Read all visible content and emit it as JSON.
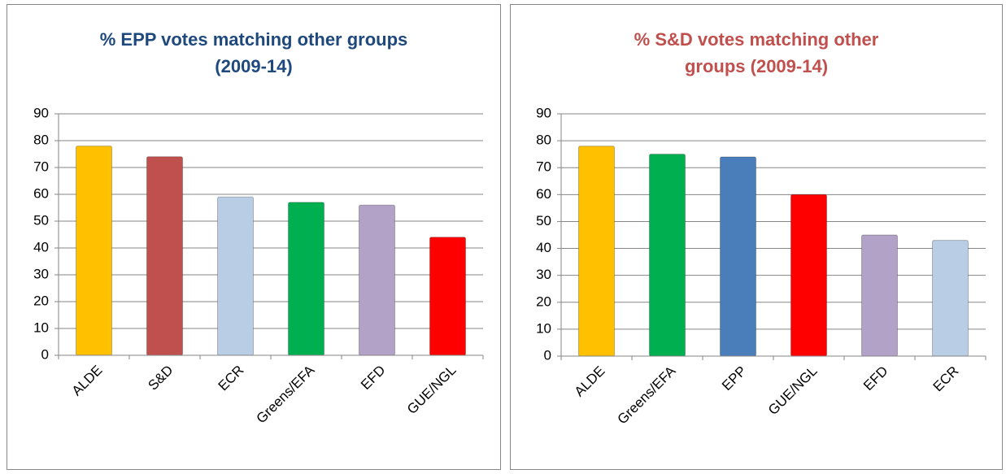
{
  "chart_data": [
    {
      "type": "bar",
      "title": [
        "% EPP votes matching other groups",
        "(2009-14)"
      ],
      "title_color": "#1f497d",
      "categories": [
        "ALDE",
        "S&D",
        "ECR",
        "Greens/EFA",
        "EFD",
        "GUE/NGL"
      ],
      "values": [
        78,
        74,
        59,
        57,
        56,
        44
      ],
      "colors": [
        "#ffc000",
        "#c0504d",
        "#b9cde5",
        "#00b050",
        "#b3a2c7",
        "#ff0000"
      ],
      "ylim": [
        0,
        90
      ],
      "yticks": [
        0,
        10,
        20,
        30,
        40,
        50,
        60,
        70,
        80,
        90
      ],
      "grid": true
    },
    {
      "type": "bar",
      "title": [
        "% S&D votes matching other",
        "groups (2009-14)"
      ],
      "title_color": "#c0504d",
      "categories": [
        "ALDE",
        "Greens/EFA",
        "EPP",
        "GUE/NGL",
        "EFD",
        "ECR"
      ],
      "values": [
        78,
        75,
        74,
        60,
        45,
        43
      ],
      "colors": [
        "#ffc000",
        "#00b050",
        "#4a7ebb",
        "#ff0000",
        "#b3a2c7",
        "#b9cde5"
      ],
      "ylim": [
        0,
        90
      ],
      "yticks": [
        0,
        10,
        20,
        30,
        40,
        50,
        60,
        70,
        80,
        90
      ],
      "grid": true
    }
  ]
}
